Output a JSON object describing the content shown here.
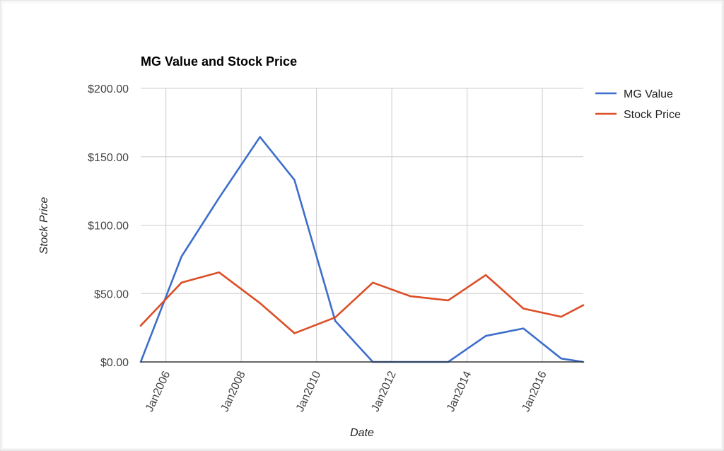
{
  "chart_data": {
    "type": "line",
    "title": "MG Value and Stock Price",
    "xlabel": "Date",
    "ylabel": "Stock Price",
    "x_tick_labels": [
      "Jan2006",
      "Jan2008",
      "Jan2010",
      "Jan2012",
      "Jan2014",
      "Jan2016"
    ],
    "y_tick_labels": [
      "$0.00",
      "$50.00",
      "$100.00",
      "$150.00",
      "$200.00"
    ],
    "y_ticks": [
      0,
      50,
      100,
      150,
      200
    ],
    "ylim": [
      0,
      200
    ],
    "x_tick_dates": [
      "2006-01-01",
      "2008-01-01",
      "2010-01-01",
      "2012-01-01",
      "2014-01-01",
      "2016-01-01"
    ],
    "xlim": [
      "2005-05-01",
      "2017-02-01"
    ],
    "grid": true,
    "legend_position": "right",
    "series": [
      {
        "name": "MG Value",
        "color": "#3d6ecb",
        "x": [
          "2005-05-01",
          "2006-06-01",
          "2007-06-01",
          "2008-07-01",
          "2009-06-01",
          "2010-07-01",
          "2011-07-01",
          "2012-07-01",
          "2013-07-01",
          "2014-07-01",
          "2015-07-01",
          "2016-07-01",
          "2017-02-01"
        ],
        "values": [
          0,
          77,
          120,
          164.5,
          133,
          30,
          0,
          0,
          0,
          19,
          24.5,
          2.5,
          0
        ]
      },
      {
        "name": "Stock Price",
        "color": "#dc4e26",
        "x": [
          "2005-05-01",
          "2006-06-01",
          "2007-06-01",
          "2008-07-01",
          "2009-06-01",
          "2010-07-01",
          "2011-07-01",
          "2012-07-01",
          "2013-07-01",
          "2014-07-01",
          "2015-07-01",
          "2016-07-01",
          "2017-02-01"
        ],
        "values": [
          26.5,
          58,
          65.5,
          43,
          21,
          32.5,
          58,
          48,
          45,
          63.5,
          39,
          33,
          41.5
        ]
      }
    ]
  }
}
